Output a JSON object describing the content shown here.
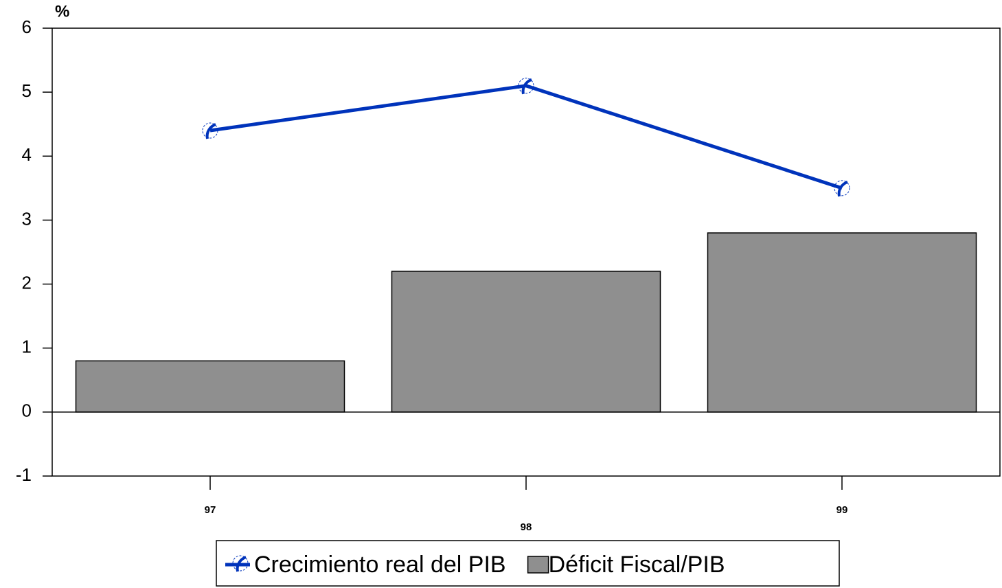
{
  "chart_data": {
    "type": "bar",
    "y_label": "%",
    "categories": [
      "97",
      "98",
      "99"
    ],
    "series": [
      {
        "name": "Crecimiento real del PIB",
        "type": "line",
        "color": "#0033bb",
        "values": [
          4.4,
          5.1,
          3.5
        ]
      },
      {
        "name": "Déficit Fiscal/PIB",
        "type": "bar",
        "color": "#8f8f8f",
        "values": [
          0.8,
          2.2,
          2.8
        ]
      }
    ],
    "ylim": [
      -1,
      6
    ],
    "yticks": [
      -1,
      0,
      1,
      2,
      3,
      4,
      5,
      6
    ],
    "grid": false
  }
}
